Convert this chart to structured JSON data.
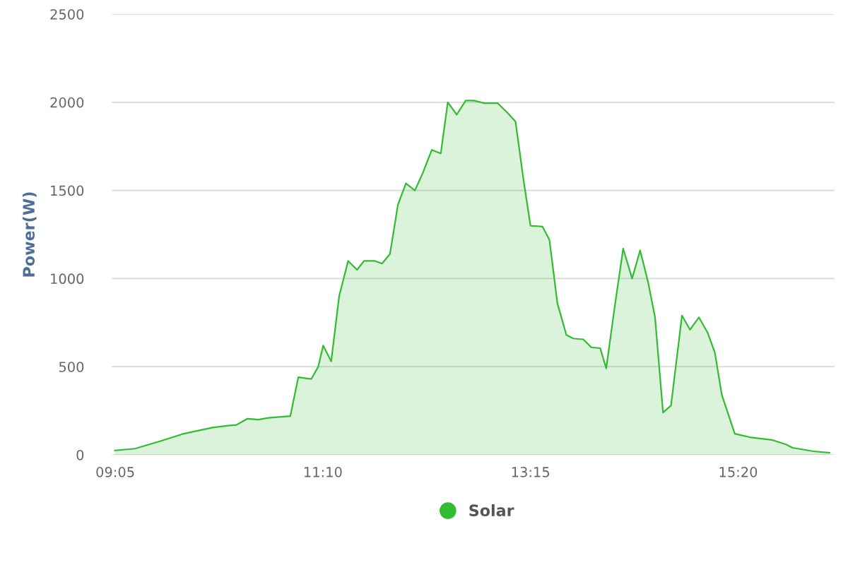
{
  "chart_data": {
    "type": "area",
    "ylabel": "Power(W)",
    "x": [
      9.08,
      9.28,
      9.52,
      9.77,
      10.06,
      10.2,
      10.3,
      10.41,
      10.52,
      10.62,
      10.84,
      10.92,
      11.05,
      11.12,
      11.17,
      11.25,
      11.33,
      11.42,
      11.51,
      11.58,
      11.69,
      11.76,
      11.84,
      11.92,
      12.0,
      12.09,
      12.17,
      12.26,
      12.35,
      12.42,
      12.51,
      12.6,
      12.68,
      12.79,
      12.92,
      13.02,
      13.1,
      13.18,
      13.25,
      13.37,
      13.44,
      13.52,
      13.61,
      13.68,
      13.78,
      13.86,
      13.95,
      14.01,
      14.09,
      14.18,
      14.27,
      14.35,
      14.43,
      14.5,
      14.58,
      14.66,
      14.77,
      14.85,
      14.94,
      15.03,
      15.1,
      15.17,
      15.3,
      15.45,
      15.67,
      15.81,
      15.88,
      16.09,
      16.25
    ],
    "series": [
      {
        "name": "Solar",
        "color": "#33bb33",
        "values": [
          25,
          35,
          75,
          120,
          155,
          165,
          170,
          205,
          200,
          210,
          220,
          440,
          430,
          500,
          620,
          530,
          900,
          1100,
          1050,
          1100,
          1100,
          1085,
          1140,
          1420,
          1540,
          1500,
          1600,
          1730,
          1710,
          2000,
          1930,
          2010,
          2010,
          1995,
          1995,
          1940,
          1890,
          1560,
          1300,
          1295,
          1220,
          860,
          680,
          660,
          655,
          610,
          605,
          490,
          820,
          1170,
          1000,
          1160,
          980,
          780,
          240,
          280,
          790,
          710,
          780,
          690,
          580,
          340,
          120,
          100,
          85,
          60,
          40,
          20,
          12
        ]
      }
    ],
    "xlim": [
      9.05,
      16.3
    ],
    "xticks": [
      {
        "value": 9.0833,
        "label": "09:05"
      },
      {
        "value": 11.1667,
        "label": "11:10"
      },
      {
        "value": 13.25,
        "label": "13:15"
      },
      {
        "value": 15.3333,
        "label": "15:20"
      }
    ],
    "ylim": [
      0,
      2500
    ],
    "yticks": [
      0,
      500,
      1000,
      1500,
      2000,
      2500
    ],
    "grid": "y",
    "legend": "bottom"
  }
}
